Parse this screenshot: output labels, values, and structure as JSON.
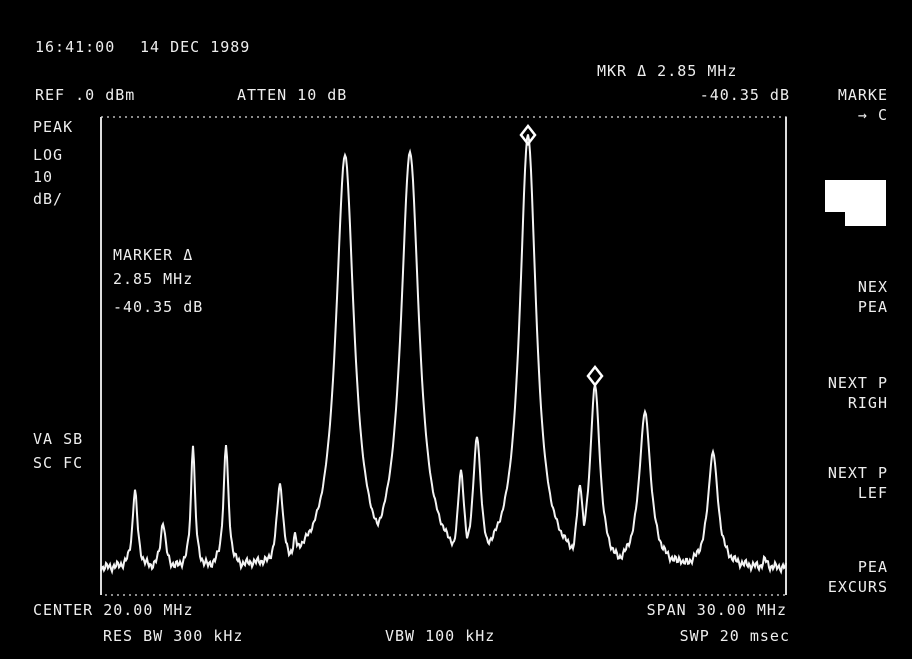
{
  "status": {
    "time": "16:41:00",
    "date": "14 DEC 1989",
    "ref": "REF .0 dBm",
    "atten": "ATTEN 10 dB",
    "marker_readout": "MKR Δ 2.85 MHz",
    "marker_level": "-40.35 dB"
  },
  "left_panel": {
    "detector": "PEAK",
    "scale": "LOG",
    "scale_value": "10",
    "scale_unit": "dB/",
    "va": "VA SB",
    "sc": "SC FC"
  },
  "annotation": {
    "title": "MARKER Δ",
    "freq": "2.85 MHz",
    "level": "-40.35 dB"
  },
  "footer": {
    "center": "CENTER 20.00 MHz",
    "span": "SPAN 30.00 MHz",
    "res_bw": "RES BW 300 kHz",
    "vbw": "VBW 100 kHz",
    "sweep": "SWP 20 msec"
  },
  "softkeys": [
    {
      "lines": [
        "MARKE",
        "→ C"
      ]
    },
    {
      "lines": [
        "NEX",
        "PEA"
      ]
    },
    {
      "lines": [
        "NEXT P",
        "RIGH"
      ]
    },
    {
      "lines": [
        "NEXT P",
        "LEF"
      ]
    },
    {
      "lines": [
        "PEA",
        "EXCURS"
      ]
    }
  ]
}
